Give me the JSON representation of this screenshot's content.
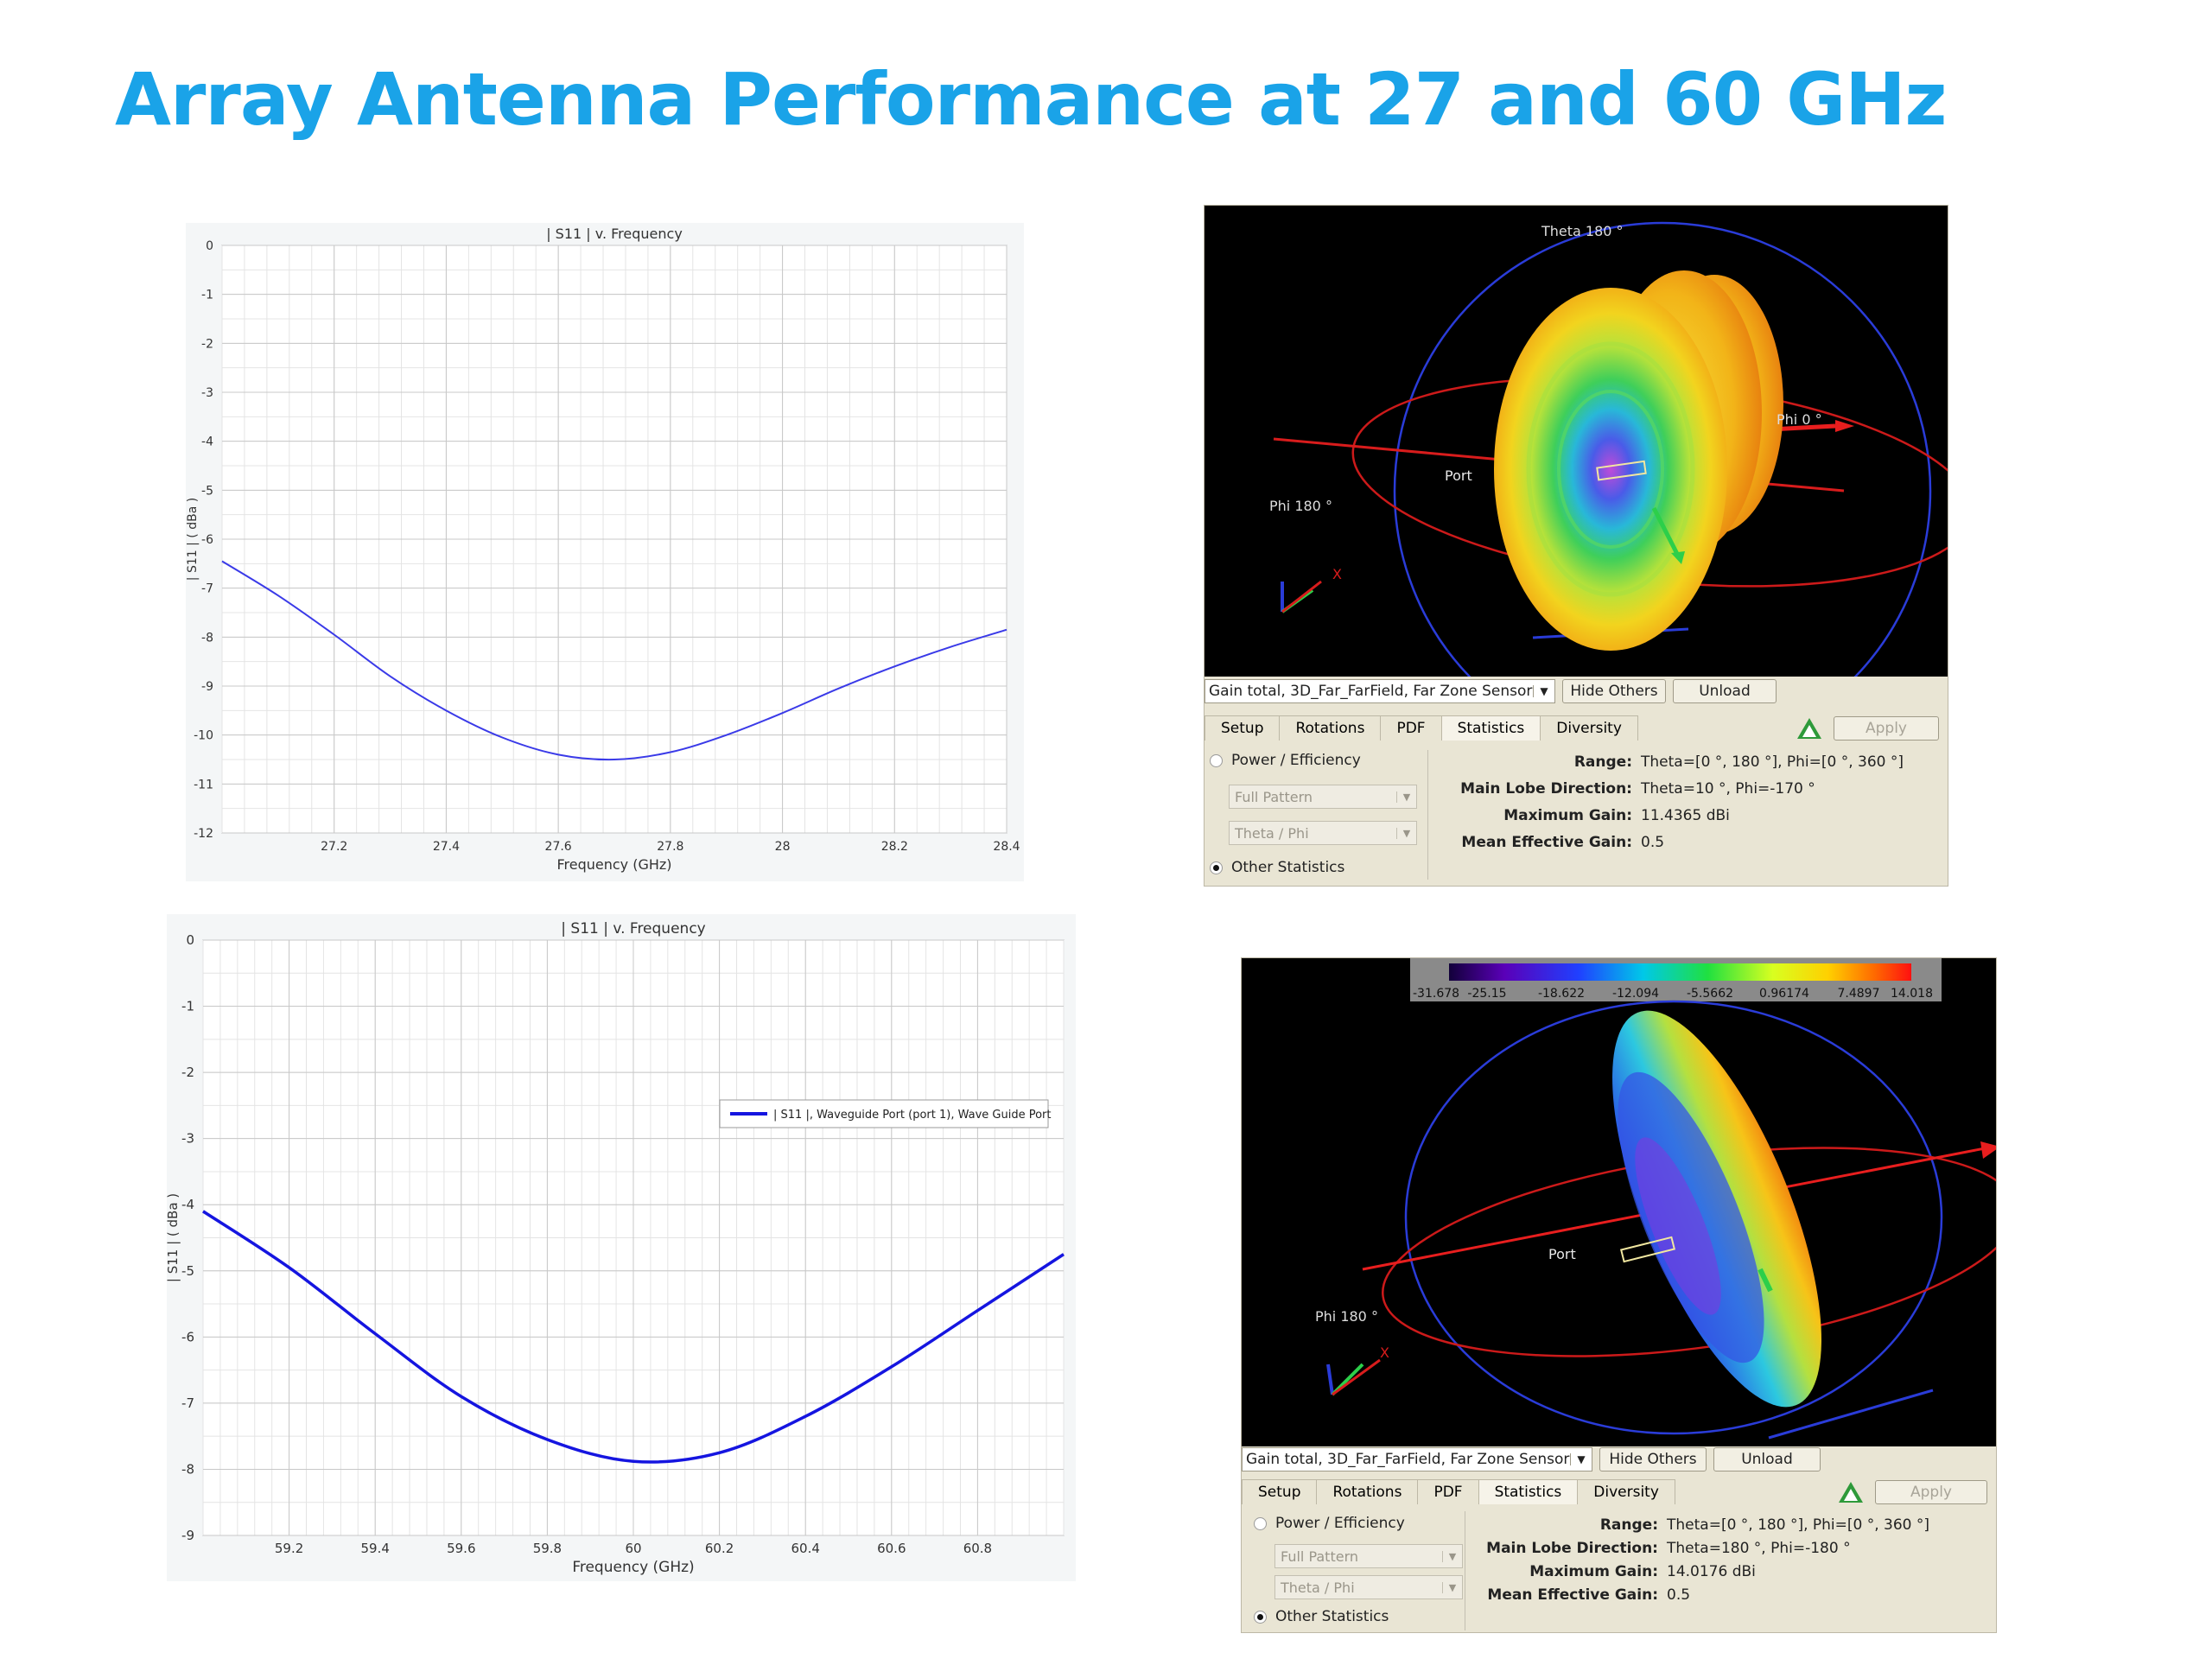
{
  "slide": {
    "title": "Array Antenna Performance at 27 and 60 GHz"
  },
  "chart_data": [
    {
      "type": "line",
      "title": "| S11 | v. Frequency",
      "xlabel": "Frequency (GHz)",
      "ylabel": "| S11 | ( dBa )",
      "xlim": [
        27.0,
        28.4
      ],
      "ylim": [
        -12,
        0
      ],
      "xticks": [
        27.2,
        27.4,
        27.6,
        27.8,
        28,
        28.2,
        28.4
      ],
      "xtick_labels": [
        "27.2",
        "27.4",
        "27.6",
        "27.8",
        "28",
        "28.2",
        "28.4"
      ],
      "yticks": [
        0,
        -1,
        -2,
        -3,
        -4,
        -5,
        -6,
        -7,
        -8,
        -9,
        -10,
        -11,
        -12
      ],
      "ytick_labels": [
        "0",
        "-1",
        "-2",
        "-3",
        "-4",
        "-5",
        "-6",
        "-7",
        "-8",
        "-9",
        "-10",
        "-11",
        "-12"
      ],
      "grid": true,
      "series": [
        {
          "color": "#3a3ae8",
          "x": [
            27.0,
            27.1,
            27.2,
            27.3,
            27.4,
            27.5,
            27.6,
            27.7,
            27.8,
            27.9,
            28.0,
            28.1,
            28.2,
            28.3,
            28.4
          ],
          "y": [
            -6.45,
            -7.15,
            -7.95,
            -8.8,
            -9.5,
            -10.05,
            -10.4,
            -10.5,
            -10.35,
            -10.0,
            -9.55,
            -9.05,
            -8.6,
            -8.2,
            -7.85
          ]
        }
      ]
    },
    {
      "type": "line",
      "title": "| S11 | v. Frequency",
      "xlabel": "Frequency (GHz)",
      "ylabel": "| S11 | ( dBa )",
      "xlim": [
        59.0,
        61.0
      ],
      "ylim": [
        -9,
        0
      ],
      "xticks": [
        59.2,
        59.4,
        59.6,
        59.8,
        60,
        60.2,
        60.4,
        60.6,
        60.8
      ],
      "xtick_labels": [
        "59.2",
        "59.4",
        "59.6",
        "59.8",
        "60",
        "60.2",
        "60.4",
        "60.6",
        "60.8"
      ],
      "yticks": [
        0,
        -1,
        -2,
        -3,
        -4,
        -5,
        -6,
        -7,
        -8,
        -9
      ],
      "ytick_labels": [
        "0",
        "-1",
        "-2",
        "-3",
        "-4",
        "-5",
        "-6",
        "-7",
        "-8",
        "-9"
      ],
      "grid": true,
      "legend_position": "upper-right",
      "series": [
        {
          "name": "| S11 |, Waveguide Port (port 1), Wave Guide Port",
          "color": "#1515e0",
          "x": [
            59.0,
            59.2,
            59.4,
            59.6,
            59.8,
            60.0,
            60.2,
            60.4,
            60.6,
            60.8,
            61.0
          ],
          "y": [
            -4.1,
            -4.95,
            -5.95,
            -6.9,
            -7.55,
            -7.88,
            -7.75,
            -7.2,
            -6.45,
            -5.6,
            -4.75
          ]
        }
      ]
    }
  ],
  "pattern_27": {
    "labels": {
      "theta": "Theta 180 °",
      "phi0": "Phi 0 °",
      "phi180": "Phi 180 °",
      "port": "Port"
    },
    "sensor_select": "Gain total, 3D_Far_FarField, Far Zone Sensor",
    "hide_others": "Hide Others",
    "unload": "Unload",
    "apply": "Apply",
    "tabs": [
      "Setup",
      "Rotations",
      "PDF",
      "Statistics",
      "Diversity"
    ],
    "radio_power": "Power / Efficiency",
    "radio_other": "Other Statistics",
    "combo_pattern": "Full Pattern",
    "combo_angle": "Theta / Phi",
    "stats": [
      {
        "k": "Range:",
        "v": "Theta=[0 °, 180 °], Phi=[0 °, 360 °]"
      },
      {
        "k": "Main Lobe Direction:",
        "v": "Theta=10 °, Phi=-170 °"
      },
      {
        "k": "Maximum Gain:",
        "v": "11.4365 dBi"
      },
      {
        "k": "Mean Effective Gain:",
        "v": "0.5"
      }
    ]
  },
  "pattern_60": {
    "colorbar_ticks": [
      "-31.678",
      "-25.15",
      "-18.622",
      "-12.094",
      "-5.5662",
      "0.96174",
      "7.4897",
      "14.018"
    ],
    "labels": {
      "phi180": "Phi 180 °",
      "port": "Port"
    },
    "sensor_select": "Gain total, 3D_Far_FarField, Far Zone Sensor",
    "hide_others": "Hide Others",
    "unload": "Unload",
    "apply": "Apply",
    "tabs": [
      "Setup",
      "Rotations",
      "PDF",
      "Statistics",
      "Diversity"
    ],
    "radio_power": "Power / Efficiency",
    "radio_other": "Other Statistics",
    "combo_pattern": "Full Pattern",
    "combo_angle": "Theta / Phi",
    "stats": [
      {
        "k": "Range:",
        "v": "Theta=[0 °, 180 °], Phi=[0 °, 360 °]"
      },
      {
        "k": "Main Lobe Direction:",
        "v": "Theta=180 °, Phi=-180 °"
      },
      {
        "k": "Maximum Gain:",
        "v": "14.0176 dBi"
      },
      {
        "k": "Mean Effective Gain:",
        "v": "0.5"
      }
    ]
  }
}
